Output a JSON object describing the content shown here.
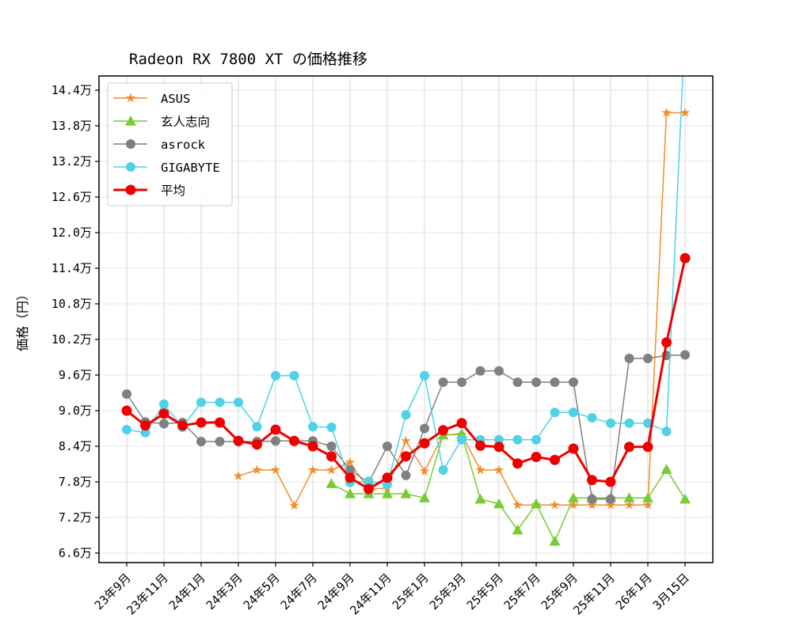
{
  "chart_data": {
    "type": "line",
    "title": "Radeon RX 7800 XT の価格推移",
    "xlabel": "",
    "ylabel": "価格（円）",
    "ylim": [
      65000,
      147000
    ],
    "grid": true,
    "legend_position": "upper left",
    "y_ticks": [
      66000,
      72000,
      78000,
      84000,
      90000,
      96000,
      102000,
      108000,
      114000,
      120000,
      126000,
      132000,
      138000,
      144000
    ],
    "y_tick_labels": [
      "6.6万",
      "7.2万",
      "7.8万",
      "8.4万",
      "9.0万",
      "9.6万",
      "10.2万",
      "10.8万",
      "11.4万",
      "12.0万",
      "12.6万",
      "13.2万",
      "13.8万",
      "14.4万"
    ],
    "x_tick_indices": [
      0,
      2,
      4,
      6,
      8,
      10,
      12,
      14,
      16,
      18,
      20,
      22,
      24,
      26,
      28,
      30
    ],
    "x_tick_labels": [
      "23年9月",
      "23年11月",
      "24年1月",
      "24年3月",
      "24年5月",
      "24年7月",
      "24年9月",
      "24年11月",
      "25年1月",
      "25年3月",
      "25年5月",
      "25年7月",
      "25年9月",
      "25年11月",
      "26年1月",
      "3月15日"
    ],
    "x": [
      "23年9月",
      "23年10月",
      "23年11月",
      "23年12月",
      "24年1月",
      "24年2月",
      "24年3月",
      "24年4月",
      "24年5月",
      "24年6月",
      "24年7月",
      "24年8月",
      "24年9月",
      "24年10月",
      "24年11月",
      "24年12月",
      "25年1月",
      "25年2月",
      "25年3月",
      "25年4月",
      "25年5月",
      "25年6月",
      "25年7月",
      "25年8月",
      "25年9月",
      "25年10月",
      "25年11月",
      "25年12月",
      "26年1月",
      "26年2月",
      "3月15日"
    ],
    "series": [
      {
        "name": "ASUS",
        "color": "#f28e2b",
        "marker": "star",
        "linewidth": 1.5,
        "values": [
          null,
          null,
          null,
          null,
          null,
          null,
          79000,
          80000,
          80000,
          74000,
          80000,
          80000,
          81300,
          76700,
          77000,
          84900,
          79800,
          85900,
          86000,
          80000,
          80000,
          74100,
          74100,
          74100,
          74100,
          74100,
          74100,
          74100,
          74100,
          140200,
          140200
        ]
      },
      {
        "name": "玄人志向",
        "color": "#77cc33",
        "marker": "triangle",
        "linewidth": 1.5,
        "values": [
          null,
          null,
          null,
          null,
          null,
          null,
          null,
          null,
          null,
          null,
          null,
          77700,
          76000,
          76000,
          76000,
          76000,
          75300,
          85900,
          86100,
          75100,
          74300,
          69900,
          74300,
          68000,
          75300,
          75300,
          75300,
          75300,
          75300,
          80100,
          75100
        ]
      },
      {
        "name": "asrock",
        "color": "#808080",
        "marker": "circle",
        "linewidth": 1.5,
        "values": [
          92800,
          88100,
          87800,
          88000,
          84800,
          84800,
          84800,
          84800,
          84900,
          84900,
          84900,
          84000,
          80000,
          77900,
          84000,
          79100,
          87000,
          94800,
          94800,
          96700,
          96700,
          94800,
          94800,
          94800,
          94800,
          75100,
          75100,
          98800,
          98800,
          99300,
          99400
        ]
      },
      {
        "name": "GIGABYTE",
        "color": "#4dd2e6",
        "marker": "circle",
        "linewidth": 1.5,
        "values": [
          86800,
          86300,
          91100,
          87200,
          91400,
          91400,
          91400,
          87300,
          95900,
          95900,
          87300,
          87200,
          77900,
          78100,
          77600,
          89300,
          95900,
          80000,
          85100,
          85100,
          85100,
          85100,
          85100,
          89700,
          89700,
          88800,
          87900,
          87900,
          87900,
          86500,
          155000
        ]
      },
      {
        "name": "平均",
        "color": "#ee0000",
        "marker": "circle",
        "linewidth": 3,
        "values": [
          90000,
          87500,
          89500,
          87500,
          88000,
          88000,
          84900,
          84300,
          86800,
          84900,
          84000,
          82300,
          78700,
          76800,
          78700,
          82300,
          84500,
          86700,
          87900,
          84100,
          83900,
          81100,
          82200,
          81700,
          83600,
          78300,
          78000,
          83900,
          83900,
          101500,
          115700
        ]
      }
    ]
  }
}
